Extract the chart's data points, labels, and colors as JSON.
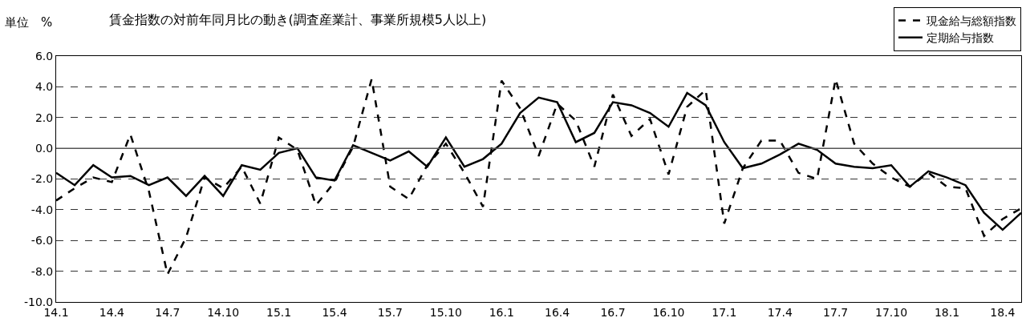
{
  "chart_data": {
    "type": "line",
    "title": "賃金指数の対前年同月比の動き(調査産業計、事業所規模5人以上)",
    "ylabel": "単位　%",
    "categories": [
      "14.1",
      null,
      null,
      "14.4",
      null,
      null,
      "14.7",
      null,
      null,
      "14.10",
      null,
      null,
      "15.1",
      null,
      null,
      "15.4",
      null,
      null,
      "15.7",
      null,
      null,
      "15.10",
      null,
      null,
      "16.1",
      null,
      null,
      "16.4",
      null,
      null,
      "16.7",
      null,
      null,
      "16.10",
      null,
      null,
      "17.1",
      null,
      null,
      "17.4",
      null,
      null,
      "17.7",
      null,
      null,
      "17.10",
      null,
      null,
      "18.1",
      null,
      null,
      "18.4",
      null
    ],
    "series": [
      {
        "name": "現金給与総額指数",
        "color": "#000000",
        "line_style": "dashed",
        "values": [
          -3.4,
          -2.6,
          -1.9,
          -2.2,
          0.9,
          -2.8,
          -8.2,
          -5.8,
          -1.9,
          -2.6,
          -1.2,
          -3.6,
          0.7,
          -0.1,
          -3.7,
          -2.2,
          0.1,
          4.5,
          -2.5,
          -3.3,
          -1.1,
          0.3,
          -1.6,
          -3.8,
          4.4,
          2.6,
          -0.5,
          2.9,
          1.8,
          -1.2,
          3.5,
          0.8,
          1.9,
          -1.7,
          2.7,
          3.8,
          -4.9,
          -1.3,
          0.5,
          0.5,
          -1.6,
          -2.0,
          4.5,
          0.3,
          -1.0,
          -1.9,
          -2.5,
          -1.6,
          -2.5,
          -2.6,
          -5.7,
          -4.6,
          -3.9
        ]
      },
      {
        "name": "定期給与指数",
        "color": "#000000",
        "line_style": "solid",
        "values": [
          -1.6,
          -2.4,
          -1.1,
          -1.9,
          -1.8,
          -2.4,
          -1.9,
          -3.1,
          -1.8,
          -3.1,
          -1.1,
          -1.4,
          -0.3,
          0.0,
          -1.9,
          -2.1,
          0.2,
          -0.3,
          -0.8,
          -0.2,
          -1.2,
          0.7,
          -1.2,
          -0.7,
          0.3,
          2.3,
          3.3,
          3.0,
          0.4,
          1.0,
          3.0,
          2.8,
          2.3,
          1.4,
          3.6,
          2.8,
          0.4,
          -1.3,
          -1.0,
          -0.4,
          0.3,
          -0.1,
          -1.0,
          -1.2,
          -1.3,
          -1.1,
          -2.5,
          -1.5,
          -1.9,
          -2.4,
          -4.2,
          -5.3,
          -4.2
        ]
      }
    ],
    "ylim": [
      -10,
      6
    ],
    "yticks": [
      {
        "value": -10,
        "label": "-10.0"
      },
      {
        "value": -8,
        "label": "-8.0"
      },
      {
        "value": -6,
        "label": "-6.0"
      },
      {
        "value": -4,
        "label": "-4.0"
      },
      {
        "value": -2,
        "label": "-2.0"
      },
      {
        "value": 0,
        "label": "0.0"
      },
      {
        "value": 2,
        "label": "2.0"
      },
      {
        "value": 4,
        "label": "4.0"
      },
      {
        "value": 6,
        "label": "6.0"
      }
    ],
    "ref_lines": [
      {
        "axis": "y",
        "value": 0,
        "color": "#555555",
        "line_style": "solid"
      }
    ],
    "grid": "y",
    "legend": "top right",
    "marker": "none"
  }
}
